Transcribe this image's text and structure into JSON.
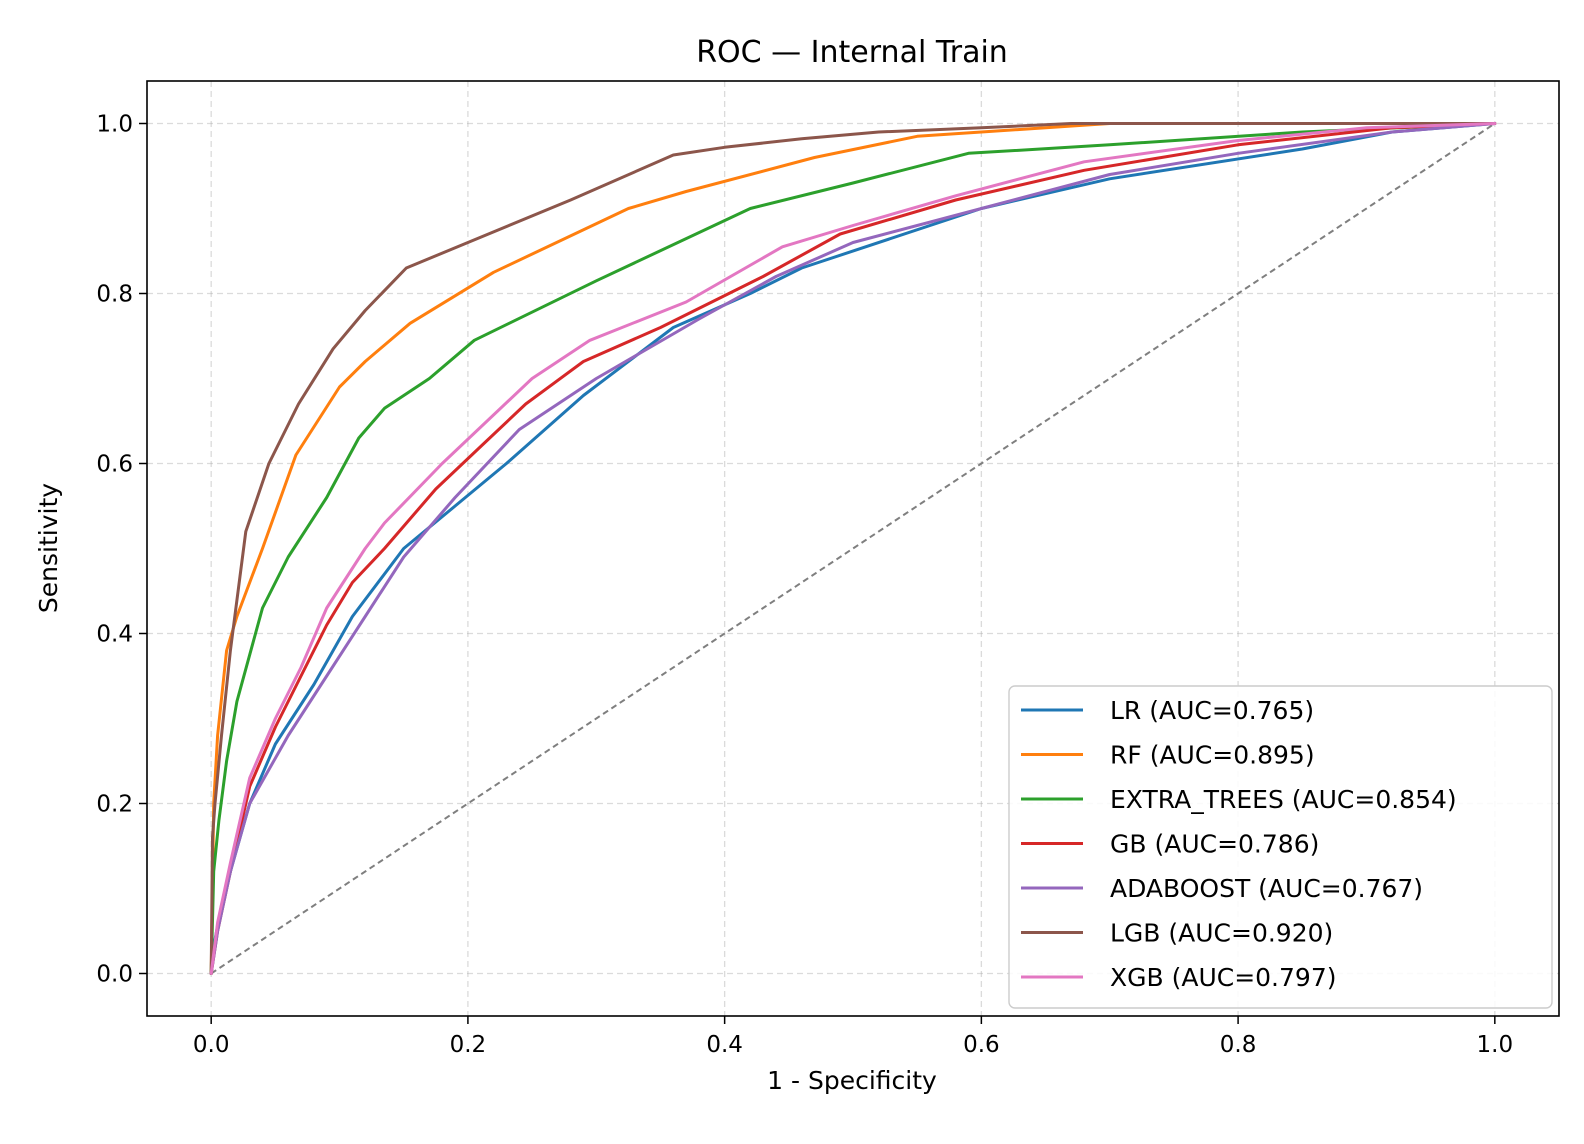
{
  "chart_data": {
    "type": "line",
    "title": "ROC — Internal Train",
    "xlabel": "1 - Specificity",
    "ylabel": "Sensitivity",
    "xlim": [
      -0.05,
      1.05
    ],
    "ylim": [
      -0.05,
      1.05
    ],
    "xticks": [
      0.0,
      0.2,
      0.4,
      0.6,
      0.8,
      1.0
    ],
    "yticks": [
      0.0,
      0.2,
      0.4,
      0.6,
      0.8,
      1.0
    ],
    "xtick_labels": [
      "0.0",
      "0.2",
      "0.4",
      "0.6",
      "0.8",
      "1.0"
    ],
    "ytick_labels": [
      "0.0",
      "0.2",
      "0.4",
      "0.6",
      "0.8",
      "1.0"
    ],
    "grid": true,
    "legend_position": "lower-right",
    "diagonal_reference": {
      "x": [
        0,
        1
      ],
      "y": [
        0,
        1
      ],
      "color": "#7f7f7f",
      "style": "dashed"
    },
    "series": [
      {
        "name": "LR (AUC=0.765)",
        "color": "#1f77b4",
        "x": [
          0.0,
          0.003,
          0.008,
          0.015,
          0.03,
          0.05,
          0.08,
          0.11,
          0.15,
          0.19,
          0.23,
          0.29,
          0.36,
          0.42,
          0.46,
          0.6,
          0.7,
          0.85,
          0.92,
          1.0
        ],
        "y": [
          0.0,
          0.04,
          0.08,
          0.12,
          0.2,
          0.27,
          0.34,
          0.42,
          0.5,
          0.55,
          0.6,
          0.68,
          0.76,
          0.8,
          0.83,
          0.9,
          0.935,
          0.97,
          0.99,
          1.0
        ]
      },
      {
        "name": "RF (AUC=0.895)",
        "color": "#ff7f0e",
        "x": [
          0.0,
          0.002,
          0.005,
          0.012,
          0.02,
          0.04,
          0.066,
          0.1,
          0.12,
          0.155,
          0.22,
          0.325,
          0.37,
          0.47,
          0.55,
          0.6,
          0.7,
          0.85,
          1.0
        ],
        "y": [
          0.0,
          0.2,
          0.28,
          0.38,
          0.42,
          0.5,
          0.61,
          0.69,
          0.72,
          0.765,
          0.825,
          0.9,
          0.92,
          0.96,
          0.985,
          0.99,
          1.0,
          1.0,
          1.0
        ]
      },
      {
        "name": "EXTRA_TREES (AUC=0.854)",
        "color": "#2ca02c",
        "x": [
          0.0,
          0.002,
          0.006,
          0.012,
          0.02,
          0.04,
          0.06,
          0.09,
          0.115,
          0.135,
          0.17,
          0.205,
          0.3,
          0.42,
          0.5,
          0.59,
          0.7,
          0.85,
          1.0
        ],
        "y": [
          0.0,
          0.12,
          0.18,
          0.25,
          0.32,
          0.43,
          0.49,
          0.56,
          0.63,
          0.665,
          0.7,
          0.745,
          0.815,
          0.9,
          0.93,
          0.965,
          0.975,
          0.99,
          1.0
        ]
      },
      {
        "name": "GB (AUC=0.786)",
        "color": "#d62728",
        "x": [
          0.0,
          0.005,
          0.015,
          0.03,
          0.05,
          0.07,
          0.09,
          0.11,
          0.135,
          0.175,
          0.21,
          0.245,
          0.29,
          0.35,
          0.43,
          0.49,
          0.58,
          0.68,
          0.8,
          0.92,
          1.0
        ],
        "y": [
          0.0,
          0.05,
          0.12,
          0.22,
          0.29,
          0.35,
          0.41,
          0.46,
          0.5,
          0.57,
          0.62,
          0.67,
          0.72,
          0.76,
          0.82,
          0.87,
          0.91,
          0.945,
          0.975,
          0.995,
          1.0
        ]
      },
      {
        "name": "ADABOOST (AUC=0.767)",
        "color": "#9467bd",
        "x": [
          0.0,
          0.005,
          0.015,
          0.03,
          0.06,
          0.09,
          0.12,
          0.15,
          0.19,
          0.24,
          0.3,
          0.38,
          0.44,
          0.5,
          0.6,
          0.7,
          0.8,
          0.92,
          1.0
        ],
        "y": [
          0.0,
          0.05,
          0.12,
          0.2,
          0.28,
          0.35,
          0.42,
          0.49,
          0.56,
          0.64,
          0.7,
          0.77,
          0.82,
          0.86,
          0.9,
          0.94,
          0.965,
          0.99,
          1.0
        ]
      },
      {
        "name": "LGB (AUC=0.920)",
        "color": "#8c564b",
        "x": [
          0.0,
          0.001,
          0.003,
          0.008,
          0.015,
          0.027,
          0.045,
          0.068,
          0.095,
          0.12,
          0.152,
          0.2,
          0.28,
          0.36,
          0.4,
          0.46,
          0.52,
          0.6,
          0.67,
          0.8,
          1.0
        ],
        "y": [
          0.0,
          0.16,
          0.2,
          0.28,
          0.38,
          0.52,
          0.6,
          0.67,
          0.735,
          0.78,
          0.83,
          0.86,
          0.91,
          0.963,
          0.972,
          0.982,
          0.99,
          0.995,
          1.0,
          1.0,
          1.0
        ]
      },
      {
        "name": "XGB (AUC=0.797)",
        "color": "#e377c2",
        "x": [
          0.0,
          0.005,
          0.015,
          0.03,
          0.05,
          0.07,
          0.09,
          0.12,
          0.135,
          0.18,
          0.25,
          0.295,
          0.37,
          0.445,
          0.5,
          0.58,
          0.68,
          0.8,
          0.9,
          1.0
        ],
        "y": [
          0.0,
          0.06,
          0.13,
          0.23,
          0.3,
          0.36,
          0.43,
          0.5,
          0.53,
          0.6,
          0.7,
          0.745,
          0.79,
          0.855,
          0.88,
          0.915,
          0.955,
          0.98,
          0.995,
          1.0
        ]
      }
    ]
  }
}
